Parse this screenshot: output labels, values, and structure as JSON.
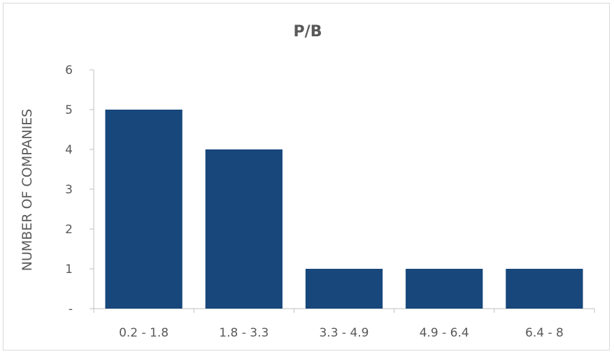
{
  "chart_data": {
    "type": "bar",
    "title": "P/B",
    "xlabel": "",
    "ylabel": "NUMBER OF COMPANIES",
    "categories": [
      "0.2 - 1.8",
      "1.8 - 3.3",
      "3.3 - 4.9",
      "4.9 - 6.4",
      "6.4 - 8"
    ],
    "values": [
      5,
      4,
      1,
      1,
      1
    ],
    "ylim": [
      0,
      6
    ],
    "yticks": [
      {
        "value": 0,
        "label": "-"
      },
      {
        "value": 1,
        "label": "1"
      },
      {
        "value": 2,
        "label": "2"
      },
      {
        "value": 3,
        "label": "3"
      },
      {
        "value": 4,
        "label": "4"
      },
      {
        "value": 5,
        "label": "5"
      },
      {
        "value": 6,
        "label": "6"
      }
    ],
    "grid": false,
    "legend": "none",
    "bar_color": "#17477b"
  }
}
